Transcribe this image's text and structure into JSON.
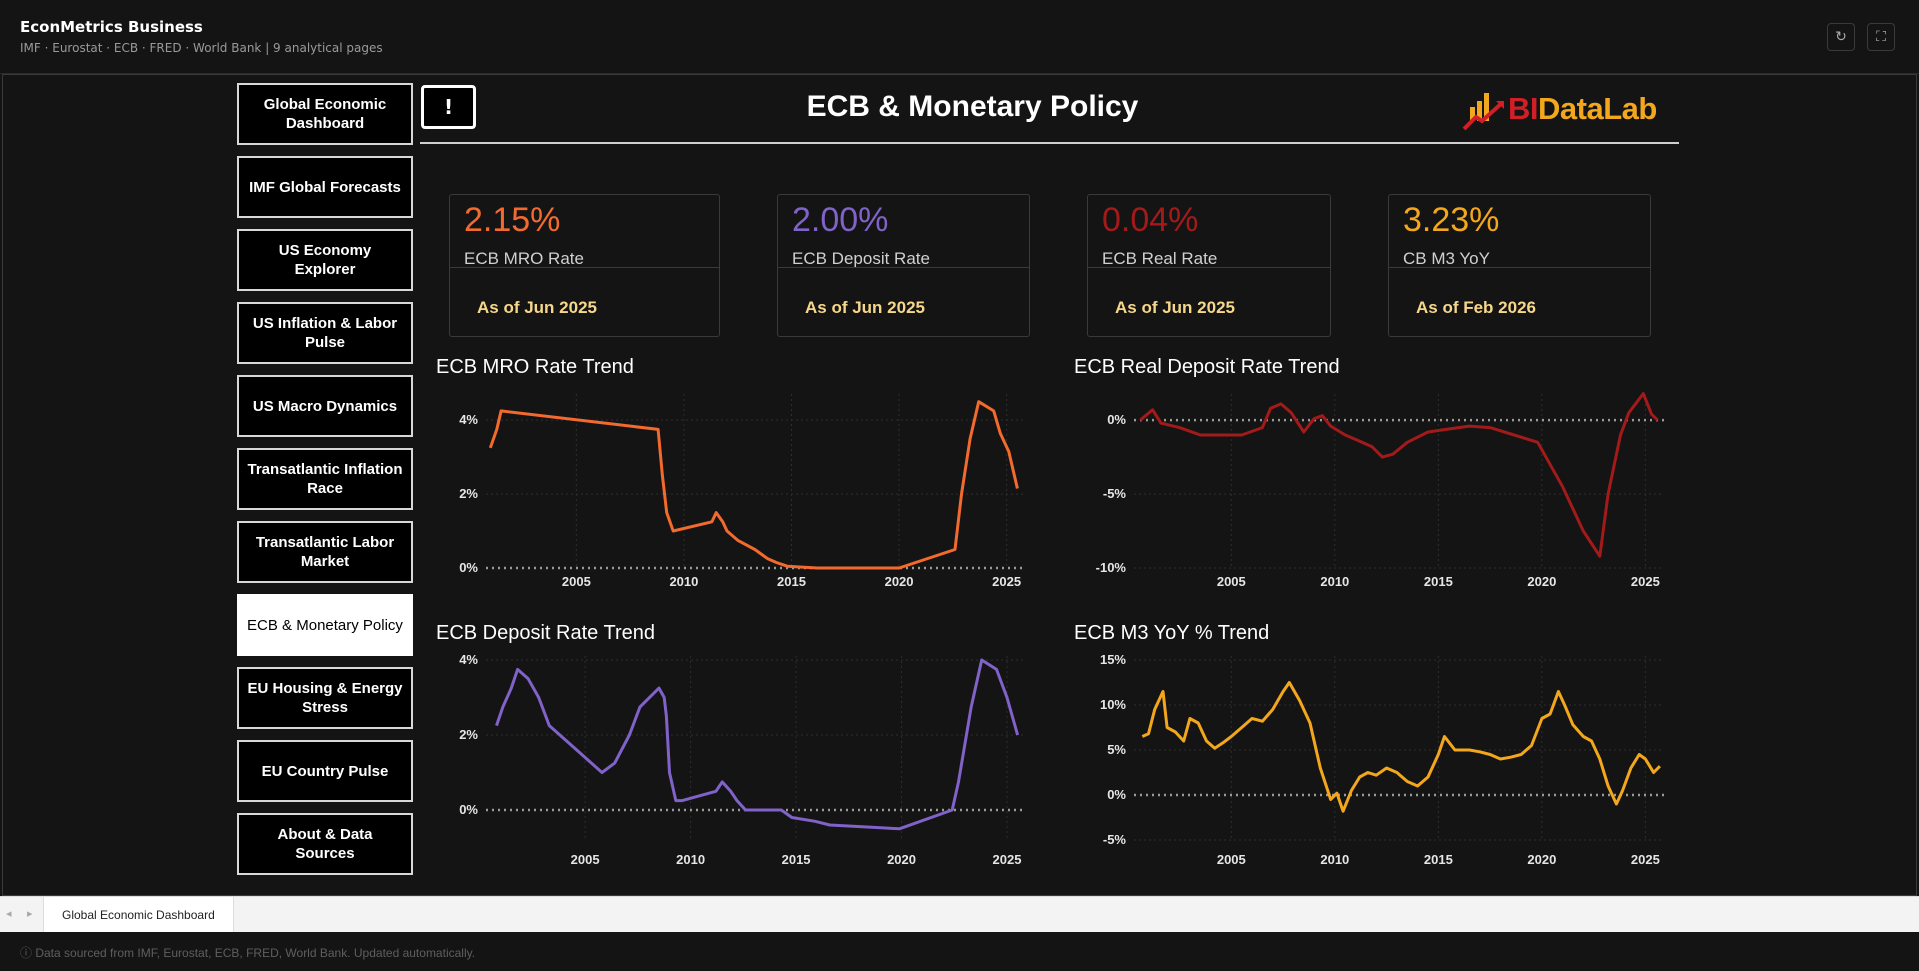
{
  "app": {
    "title": "EconMetrics Business",
    "subtitle": "IMF · Eurostat · ECB · FRED · World Bank  |  9 analytical pages",
    "refresh_icon": "refresh-icon",
    "fullscreen_icon": "fullscreen-icon"
  },
  "nav": {
    "items": [
      {
        "label": "Global Economic Dashboard"
      },
      {
        "label": "IMF Global Forecasts"
      },
      {
        "label": "US Economy Explorer"
      },
      {
        "label": "US Inflation & Labor Pulse"
      },
      {
        "label": "US Macro Dynamics"
      },
      {
        "label": "Transatlantic Inflation Race"
      },
      {
        "label": "Transatlantic Labor Market"
      },
      {
        "label": "ECB & Monetary Policy",
        "active": true
      },
      {
        "label": "EU Housing & Energy Stress"
      },
      {
        "label": "EU Country Pulse"
      },
      {
        "label": "About & Data Sources"
      }
    ]
  },
  "header": {
    "info_label": "!",
    "title": "ECB & Monetary Policy",
    "logo_bi": "BI",
    "logo_rest": "DataLab"
  },
  "kpis": [
    {
      "value": "2.15%",
      "label": "ECB MRO Rate",
      "asof": "As of Jun 2025",
      "color": "#f26a2e"
    },
    {
      "value": "2.00%",
      "label": "ECB Deposit Rate",
      "asof": "As of Jun 2025",
      "color": "#8062c9"
    },
    {
      "value": "0.04%",
      "label": "ECB Real Rate",
      "asof": "As of Jun 2025",
      "color": "#a31a1a"
    },
    {
      "value": "3.23%",
      "label": "CB M3 YoY",
      "asof": "As of Feb 2026",
      "color": "#f3a71c"
    }
  ],
  "chart_data": [
    {
      "type": "line",
      "title": "ECB MRO Rate Trend",
      "color": "#f26a2e",
      "xlim": [
        2000.8,
        2025.9
      ],
      "ylim": [
        0,
        4.6
      ],
      "xticks": [
        2005,
        2010,
        2015,
        2020,
        2025
      ],
      "yticks": [
        {
          "v": 0,
          "label": "0%"
        },
        {
          "v": 2,
          "label": "2%"
        },
        {
          "v": 4,
          "label": "4%"
        }
      ],
      "x": [
        2001.0,
        2001.3,
        2001.5,
        2008.8,
        2009.0,
        2009.2,
        2009.5,
        2011.3,
        2011.5,
        2011.8,
        2012.0,
        2012.5,
        2013.3,
        2013.9,
        2014.3,
        2014.8,
        2016.2,
        2020.0,
        2022.6,
        2022.9,
        2023.3,
        2023.7,
        2024.4,
        2024.7,
        2025.1,
        2025.5
      ],
      "values": [
        3.25,
        3.75,
        4.25,
        3.75,
        2.5,
        1.5,
        1.0,
        1.25,
        1.5,
        1.25,
        1.0,
        0.75,
        0.5,
        0.25,
        0.15,
        0.05,
        0.0,
        0.0,
        0.5,
        2.0,
        3.5,
        4.5,
        4.25,
        3.65,
        3.15,
        2.15
      ]
    },
    {
      "type": "line",
      "title": "ECB Real Deposit Rate Trend",
      "color": "#a31a1a",
      "xlim": [
        2000.3,
        2025.9
      ],
      "ylim": [
        -10,
        1.5
      ],
      "xticks": [
        2005,
        2010,
        2015,
        2020,
        2025
      ],
      "yticks": [
        {
          "v": 0,
          "label": "0%"
        },
        {
          "v": -5,
          "label": "-5%"
        },
        {
          "v": -10,
          "label": "-10%"
        }
      ],
      "x": [
        2000.6,
        2001.2,
        2001.6,
        2002.5,
        2003.5,
        2004.5,
        2005.5,
        2006.5,
        2006.9,
        2007.4,
        2007.9,
        2008.5,
        2009.0,
        2009.4,
        2009.8,
        2010.5,
        2011.0,
        2011.8,
        2012.3,
        2012.8,
        2013.5,
        2014.5,
        2015.5,
        2016.5,
        2017.5,
        2019.8,
        2021.0,
        2022.0,
        2022.8,
        2023.2,
        2023.8,
        2024.2,
        2024.9,
        2025.3,
        2025.6
      ],
      "values": [
        0.0,
        0.7,
        -0.2,
        -0.5,
        -1.0,
        -1.0,
        -1.0,
        -0.5,
        0.8,
        1.1,
        0.5,
        -0.8,
        0.1,
        0.3,
        -0.4,
        -1.0,
        -1.3,
        -1.8,
        -2.5,
        -2.3,
        -1.5,
        -0.8,
        -0.6,
        -0.4,
        -0.5,
        -1.5,
        -4.5,
        -7.5,
        -9.2,
        -5.0,
        -1.0,
        0.5,
        1.8,
        0.4,
        0.0
      ]
    },
    {
      "type": "line",
      "title": "ECB Deposit Rate Trend",
      "color": "#8062c9",
      "xlim": [
        2000.3,
        2025.9
      ],
      "ylim": [
        -0.8,
        4.0
      ],
      "xticks": [
        2005,
        2010,
        2015,
        2020,
        2025
      ],
      "yticks": [
        {
          "v": 0,
          "label": "0%"
        },
        {
          "v": 2,
          "label": "2%"
        },
        {
          "v": 4,
          "label": "4%"
        }
      ],
      "x": [
        2000.8,
        2001.1,
        2001.5,
        2001.8,
        2002.3,
        2002.8,
        2003.3,
        2004.3,
        2005.8,
        2006.4,
        2007.1,
        2007.6,
        2008.5,
        2008.75,
        2008.85,
        2009.0,
        2009.3,
        2009.6,
        2011.2,
        2011.5,
        2011.9,
        2012.2,
        2012.6,
        2014.3,
        2014.8,
        2015.9,
        2016.6,
        2019.9,
        2022.4,
        2022.7,
        2023.3,
        2023.8,
        2024.5,
        2025.0,
        2025.5
      ],
      "values": [
        2.25,
        2.75,
        3.25,
        3.75,
        3.5,
        3.0,
        2.25,
        1.75,
        1.0,
        1.25,
        2.0,
        2.75,
        3.25,
        3.0,
        2.5,
        1.0,
        0.25,
        0.25,
        0.5,
        0.75,
        0.5,
        0.25,
        0.0,
        0.0,
        -0.2,
        -0.3,
        -0.4,
        -0.5,
        0.0,
        0.75,
        2.75,
        4.0,
        3.75,
        3.0,
        2.0
      ]
    },
    {
      "type": "line",
      "title": "ECB M3 YoY % Trend",
      "color": "#f3a71c",
      "xlim": [
        2000.3,
        2025.9
      ],
      "ylim": [
        -5,
        15
      ],
      "xticks": [
        2005,
        2010,
        2015,
        2020,
        2025
      ],
      "yticks": [
        {
          "v": 15,
          "label": "15%"
        },
        {
          "v": 10,
          "label": "10%"
        },
        {
          "v": 5,
          "label": "5%"
        },
        {
          "v": 0,
          "label": "0%"
        },
        {
          "v": -5,
          "label": "-5%"
        }
      ],
      "x": [
        2000.7,
        2001.0,
        2001.3,
        2001.7,
        2001.9,
        2002.3,
        2002.7,
        2003.0,
        2003.4,
        2003.8,
        2004.2,
        2004.6,
        2005.0,
        2005.5,
        2006.0,
        2006.5,
        2007.0,
        2007.5,
        2007.8,
        2008.3,
        2008.8,
        2009.3,
        2009.8,
        2010.1,
        2010.4,
        2010.8,
        2011.2,
        2011.6,
        2012.0,
        2012.5,
        2013.0,
        2013.5,
        2014.0,
        2014.5,
        2015.0,
        2015.3,
        2015.8,
        2016.5,
        2017.0,
        2017.5,
        2018.0,
        2018.5,
        2019.0,
        2019.5,
        2020.0,
        2020.4,
        2020.8,
        2021.1,
        2021.5,
        2022.0,
        2022.4,
        2022.8,
        2023.2,
        2023.6,
        2023.9,
        2024.3,
        2024.7,
        2025.0,
        2025.4,
        2025.7
      ],
      "values": [
        6.5,
        6.8,
        9.5,
        11.5,
        7.5,
        7.0,
        6.0,
        8.5,
        8.0,
        6.0,
        5.2,
        5.8,
        6.5,
        7.5,
        8.5,
        8.2,
        9.5,
        11.5,
        12.5,
        10.5,
        8.0,
        3.0,
        -0.5,
        0.2,
        -1.8,
        0.5,
        2.0,
        2.5,
        2.2,
        3.0,
        2.5,
        1.5,
        1.0,
        2.0,
        4.5,
        6.5,
        5.0,
        5.0,
        4.8,
        4.5,
        4.0,
        4.2,
        4.5,
        5.5,
        8.5,
        9.0,
        11.5,
        10.0,
        7.8,
        6.5,
        6.0,
        4.0,
        1.0,
        -1.0,
        0.5,
        3.0,
        4.5,
        4.0,
        2.5,
        3.2
      ]
    }
  ],
  "tabbar": {
    "tab_label": "Global Economic Dashboard"
  },
  "footer": {
    "note": "ⓘ  Data sourced from IMF, Eurostat, ECB, FRED, World Bank. Updated automatically."
  }
}
